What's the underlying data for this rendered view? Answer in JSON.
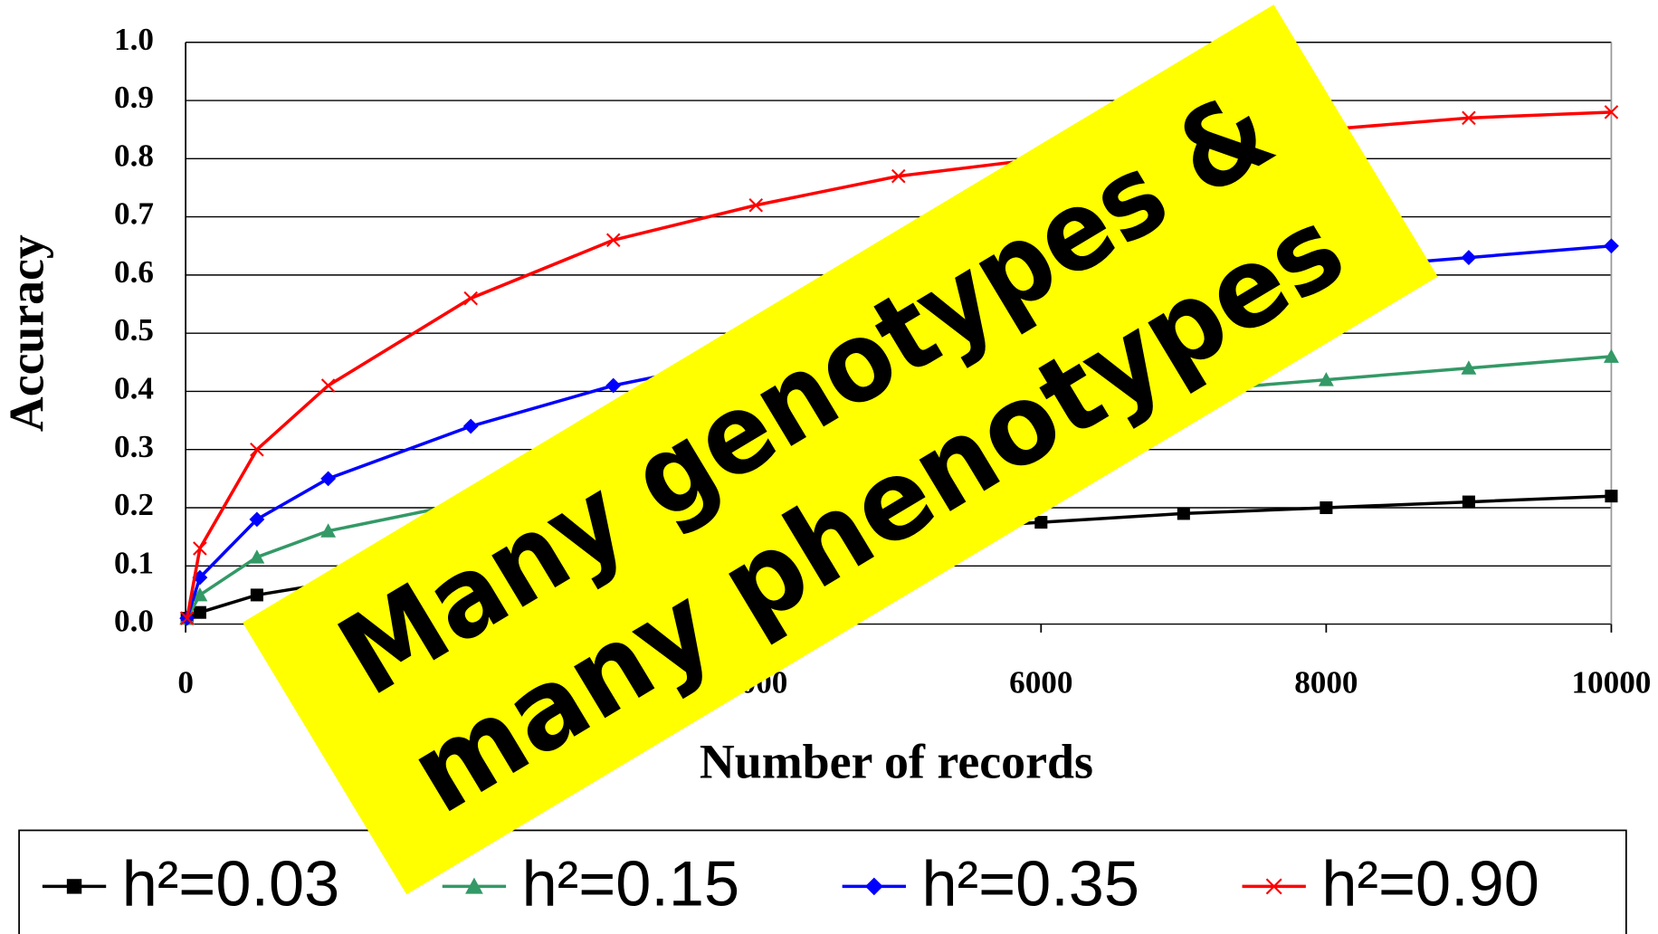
{
  "chart_data": {
    "type": "line",
    "xlabel": "Number of records",
    "ylabel": "Accuracy",
    "annotations": [
      "Many genotypes &",
      "many phenotypes"
    ],
    "x": [
      10,
      100,
      500,
      1000,
      2000,
      3000,
      4000,
      5000,
      6000,
      7000,
      8000,
      9000,
      10000
    ],
    "series": [
      {
        "name": "h²=0.03",
        "color": "#000000",
        "marker": "square",
        "values": [
          0.01,
          0.02,
          0.05,
          0.07,
          0.1,
          0.13,
          0.15,
          0.16,
          0.175,
          0.19,
          0.2,
          0.21,
          0.22
        ]
      },
      {
        "name": "h²=0.15",
        "color": "#339966",
        "marker": "triangle",
        "values": [
          0.01,
          0.05,
          0.115,
          0.16,
          0.21,
          0.26,
          0.3,
          0.34,
          0.37,
          0.4,
          0.42,
          0.44,
          0.46
        ]
      },
      {
        "name": "h²=0.35",
        "color": "#0000ff",
        "marker": "diamond",
        "values": [
          0.01,
          0.08,
          0.18,
          0.25,
          0.34,
          0.41,
          0.46,
          0.52,
          0.56,
          0.59,
          0.61,
          0.63,
          0.65
        ]
      },
      {
        "name": "h²=0.90",
        "color": "#ff0000",
        "marker": "x",
        "values": [
          0.01,
          0.13,
          0.3,
          0.41,
          0.56,
          0.66,
          0.72,
          0.77,
          0.8,
          0.83,
          0.85,
          0.87,
          0.88
        ]
      }
    ],
    "xlim": [
      0,
      10000
    ],
    "xticks": [
      0,
      2000,
      4000,
      6000,
      8000,
      10000
    ],
    "ylim": [
      0,
      1
    ],
    "yticks": [
      {
        "value": 0,
        "label": "0.0"
      },
      0.1,
      0.2,
      0.3,
      0.4,
      0.5,
      0.6,
      0.7,
      0.8,
      0.9,
      {
        "value": 1,
        "label": "1.0"
      }
    ],
    "grid": true,
    "legend": "bottom"
  }
}
